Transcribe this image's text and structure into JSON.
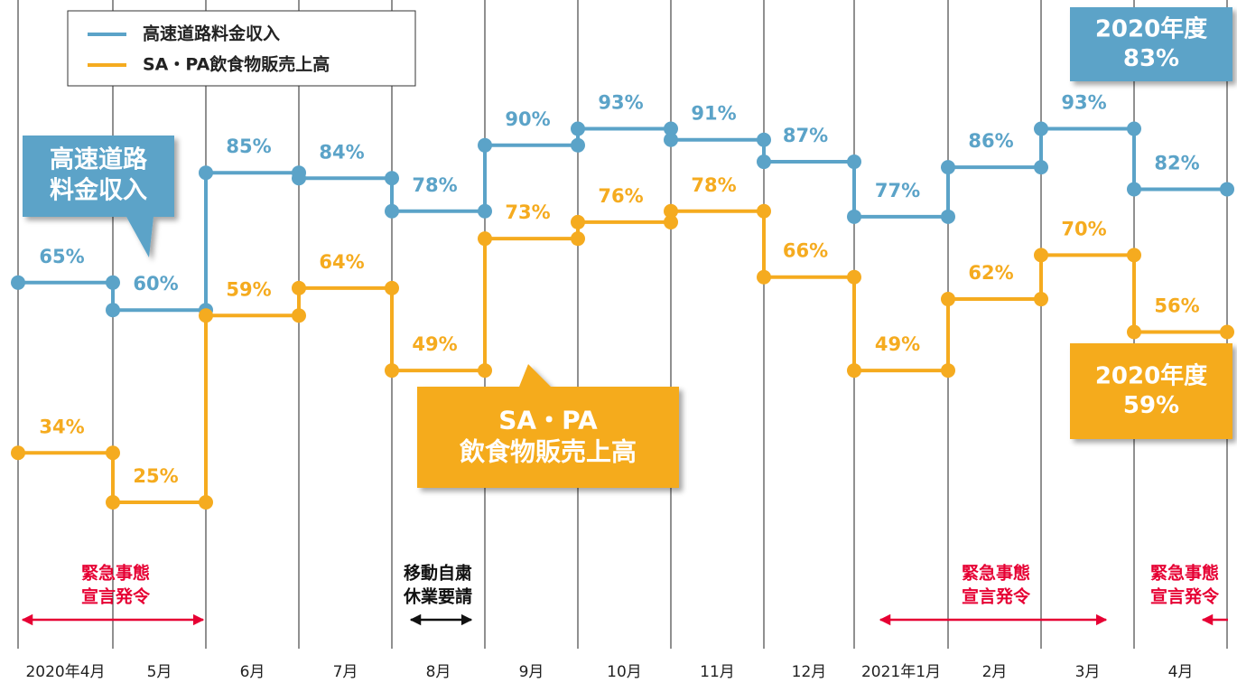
{
  "chart_data": {
    "type": "step",
    "categories": [
      "2020年4月",
      "5月",
      "6月",
      "7月",
      "8月",
      "9月",
      "10月",
      "11月",
      "12月",
      "2021年1月",
      "2月",
      "3月",
      "4月"
    ],
    "series": [
      {
        "name": "高速道路料金収入",
        "color": "#5ba3c8",
        "values": [
          65,
          60,
          85,
          84,
          78,
          90,
          93,
          91,
          87,
          77,
          86,
          93,
          82
        ],
        "value_labels": [
          "65%",
          "60%",
          "85%",
          "84%",
          "78%",
          "90%",
          "93%",
          "91%",
          "87%",
          "77%",
          "86%",
          "93%",
          "82%"
        ]
      },
      {
        "name": "SA・PA飲食物販売上高",
        "color": "#f5ab1f",
        "values": [
          34,
          25,
          59,
          64,
          49,
          73,
          76,
          78,
          66,
          49,
          62,
          70,
          56
        ],
        "value_labels": [
          "34%",
          "25%",
          "59%",
          "64%",
          "49%",
          "73%",
          "76%",
          "78%",
          "66%",
          "49%",
          "62%",
          "70%",
          "56%"
        ]
      }
    ],
    "callouts": [
      {
        "lines": [
          "高速道路",
          "料金収入"
        ]
      },
      {
        "lines": [
          "SA・PA",
          "飲食物販売上高"
        ]
      },
      {
        "lines": [
          "2020年度",
          "83%"
        ]
      },
      {
        "lines": [
          "2020年度",
          "59%"
        ]
      }
    ],
    "events": [
      {
        "lines": [
          "緊急事態",
          "宣言発令"
        ],
        "color": "#e60033"
      },
      {
        "lines": [
          "移動自粛",
          "休業要請"
        ],
        "color": "#111111"
      },
      {
        "lines": [
          "緊急事態",
          "宣言発令"
        ],
        "color": "#e60033"
      },
      {
        "lines": [
          "緊急事態",
          "宣言発令"
        ],
        "color": "#e60033"
      }
    ]
  }
}
